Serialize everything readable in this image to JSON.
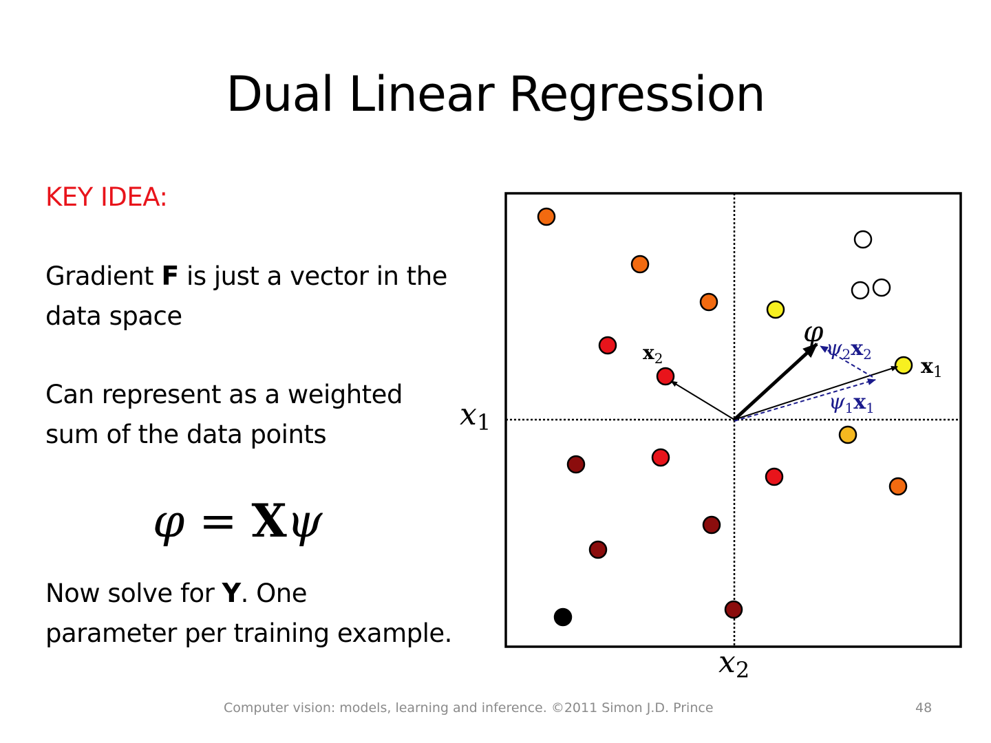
{
  "title": "Dual Linear Regression",
  "key_idea": "KEY IDEA:",
  "para1": {
    "prefix": "Gradient ",
    "symbol": "F",
    "suffix_line1": " is just a vector in the",
    "line2": "data space"
  },
  "para2": {
    "line1": "Can represent as a weighted",
    "line2": "sum of the data points"
  },
  "equation": {
    "lhs": "φ",
    "eq": " = ",
    "X": "X",
    "rhs": "ψ"
  },
  "para3": {
    "prefix": "Now solve for ",
    "symbol": "Y",
    "suffix_line1": ".   One",
    "line2": "parameter per training example."
  },
  "figure": {
    "axis_x1": "x",
    "axis_x1_sub": "1",
    "axis_x2": "x",
    "axis_x2_sub": "2",
    "phi_label": "φ",
    "vec_x1": "x",
    "vec_x1_sub": "1",
    "vec_x2": "x",
    "vec_x2_sub": "2",
    "psi1x1": "ψ",
    "psi1_sub": "1",
    "psi1_x": "x",
    "psi1_xsub": "1",
    "psi2x2": "ψ",
    "psi2_sub": "2",
    "psi2_x": "x",
    "psi2_xsub": "2",
    "colors": {
      "orange": "#f26a10",
      "red": "#e8141b",
      "darkred": "#8b0d0d",
      "yellow": "#f7f020",
      "gold": "#f5b820",
      "black": "#000000",
      "white": "#ffffff",
      "blue": "#1a1a8c"
    }
  },
  "footer": "Computer vision: models, learning and inference.  ©2011 Simon J.D. Prince",
  "page_number": "48"
}
